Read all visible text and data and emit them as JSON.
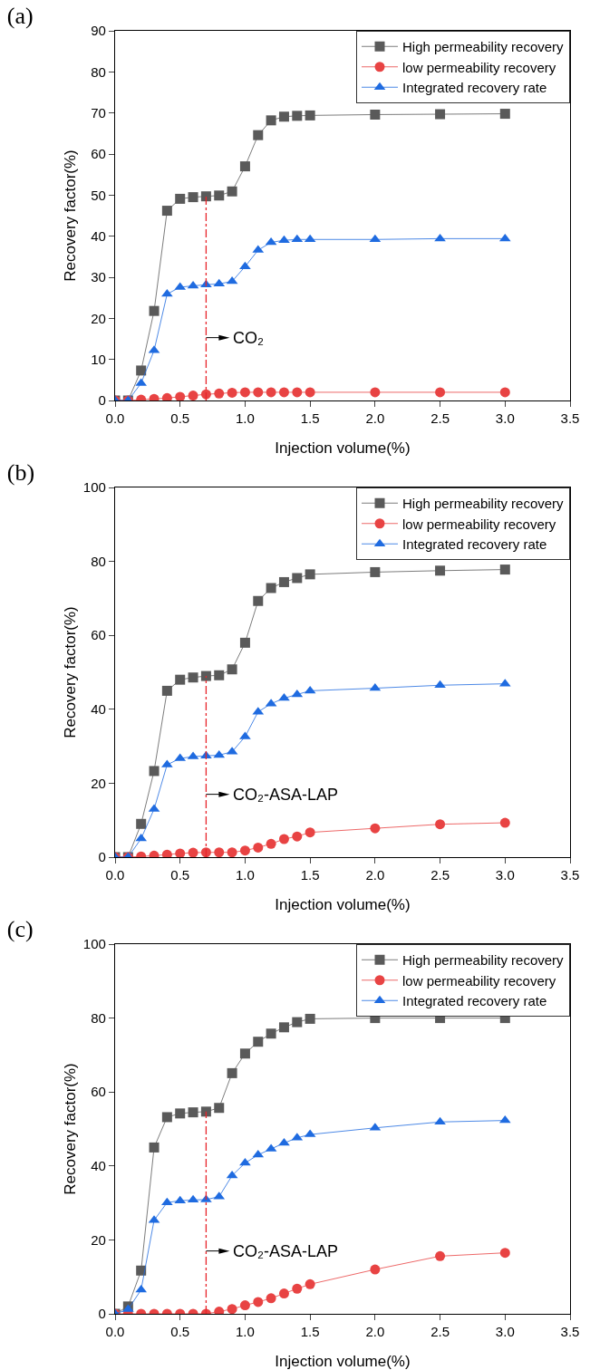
{
  "chart_data": [
    {
      "type": "line",
      "title": "(a)",
      "xlabel": "Injection volume(%)",
      "ylabel": "Recovery factor(%)",
      "x": [
        0,
        0.1,
        0.2,
        0.3,
        0.4,
        0.5,
        0.6,
        0.7,
        0.8,
        0.9,
        1.0,
        1.1,
        1.2,
        1.3,
        1.4,
        1.5,
        2.0,
        2.5,
        3.0
      ],
      "series": [
        {
          "name": "High permeability recovery",
          "color": "#5a5a5a",
          "marker": "square",
          "values": [
            0,
            0,
            7.3,
            21.8,
            46.2,
            49.1,
            49.5,
            49.7,
            49.9,
            50.9,
            57,
            64.6,
            68.2,
            69.1,
            69.3,
            69.4,
            69.6,
            69.7,
            69.8
          ]
        },
        {
          "name": "low permeability recovery",
          "color": "#e84343",
          "marker": "circle",
          "values": [
            0,
            0,
            0.2,
            0.4,
            0.6,
            0.9,
            1.2,
            1.5,
            1.7,
            1.9,
            2,
            2,
            2,
            2,
            2,
            2,
            2,
            2,
            2
          ]
        },
        {
          "name": "Integrated recovery rate",
          "color": "#1f6be0",
          "marker": "triangle",
          "values": [
            0,
            0,
            4.2,
            12.2,
            25.9,
            27.6,
            27.9,
            28.2,
            28.4,
            29,
            32.6,
            36.6,
            38.5,
            39,
            39.2,
            39.2,
            39.2,
            39.4,
            39.4
          ]
        }
      ],
      "xlim": [
        0,
        3.5
      ],
      "xticks": [
        {
          "value": 0,
          "label": "0.0"
        },
        0.5,
        {
          "value": 1,
          "label": "1.0"
        },
        1.5,
        {
          "value": 2,
          "label": "2.0"
        },
        2.5,
        {
          "value": 3,
          "label": "3.0"
        },
        3.5
      ],
      "ylim": [
        0,
        90
      ],
      "yticks": [
        0,
        10,
        20,
        30,
        40,
        50,
        60,
        70,
        80,
        90
      ],
      "ref_lines": [
        {
          "axis": "x",
          "value": 0.7,
          "color": "#e8242a",
          "line_style": "dashdot",
          "label": "CO₂"
        }
      ],
      "grid": false,
      "legend": "top right"
    },
    {
      "type": "line",
      "title": "(b)",
      "xlabel": "Injection volume(%)",
      "ylabel": "Recovery factor(%)",
      "x": [
        0,
        0.1,
        0.2,
        0.3,
        0.4,
        0.5,
        0.6,
        0.7,
        0.8,
        0.9,
        1.0,
        1.1,
        1.2,
        1.3,
        1.4,
        1.5,
        2.0,
        2.5,
        3.0
      ],
      "series": [
        {
          "name": "High permeability recovery",
          "color": "#5a5a5a",
          "marker": "square",
          "values": [
            0,
            0,
            9,
            23.3,
            45,
            48,
            48.6,
            49,
            49.2,
            50.8,
            58,
            69.3,
            72.8,
            74.4,
            75.5,
            76.5,
            77.1,
            77.5,
            77.8
          ]
        },
        {
          "name": "low permeability recovery",
          "color": "#e84343",
          "marker": "circle",
          "values": [
            0,
            0,
            0.2,
            0.4,
            0.7,
            1,
            1.2,
            1.3,
            1.3,
            1.3,
            1.8,
            2.6,
            3.6,
            4.9,
            5.6,
            6.7,
            7.8,
            8.9,
            9.3
          ]
        },
        {
          "name": "Integrated recovery rate",
          "color": "#1f6be0",
          "marker": "triangle",
          "values": [
            0,
            0,
            5,
            13,
            25,
            26.7,
            27.2,
            27.4,
            27.6,
            28.5,
            32.6,
            39.3,
            41.5,
            43,
            44,
            45,
            45.7,
            46.5,
            46.9
          ]
        }
      ],
      "xlim": [
        0,
        3.5
      ],
      "xticks": [
        {
          "value": 0,
          "label": "0.0"
        },
        0.5,
        {
          "value": 1,
          "label": "1.0"
        },
        1.5,
        {
          "value": 2,
          "label": "2.0"
        },
        2.5,
        {
          "value": 3,
          "label": "3.0"
        },
        3.5
      ],
      "ylim": [
        0,
        100
      ],
      "yticks": [
        0,
        20,
        40,
        60,
        80,
        100
      ],
      "ref_lines": [
        {
          "axis": "x",
          "value": 0.7,
          "color": "#e8242a",
          "line_style": "dashdot",
          "label": "CO₂-ASA-LAP"
        }
      ],
      "grid": false,
      "legend": "top right"
    },
    {
      "type": "line",
      "title": "(c)",
      "xlabel": "Injection volume(%)",
      "ylabel": "Recovery factor(%)",
      "x": [
        0,
        0.1,
        0.2,
        0.3,
        0.4,
        0.5,
        0.6,
        0.7,
        0.8,
        0.9,
        1.0,
        1.1,
        1.2,
        1.3,
        1.4,
        1.5,
        2.0,
        2.5,
        3.0
      ],
      "series": [
        {
          "name": "High permeability recovery",
          "color": "#5a5a5a",
          "marker": "square",
          "values": [
            0,
            2,
            11.7,
            45,
            53.2,
            54.2,
            54.5,
            54.7,
            55.7,
            65.1,
            70.4,
            73.6,
            75.8,
            77.5,
            78.9,
            79.8,
            80,
            80,
            80
          ]
        },
        {
          "name": "low permeability recovery",
          "color": "#e84343",
          "marker": "circle",
          "values": [
            0,
            0,
            0,
            0,
            0,
            0,
            0,
            0,
            0.6,
            1.3,
            2.3,
            3.2,
            4.2,
            5.5,
            6.8,
            8,
            12,
            15.6,
            16.5
          ]
        },
        {
          "name": "Integrated recovery rate",
          "color": "#1f6be0",
          "marker": "triangle",
          "values": [
            0,
            1.2,
            6.5,
            25.3,
            30.1,
            30.6,
            30.8,
            30.9,
            31.7,
            37.4,
            40.8,
            43,
            44.6,
            46.2,
            47.6,
            48.5,
            50.3,
            51.9,
            52.3
          ]
        }
      ],
      "xlim": [
        0,
        3.5
      ],
      "xticks": [
        {
          "value": 0,
          "label": "0.0"
        },
        0.5,
        {
          "value": 1,
          "label": "1.0"
        },
        1.5,
        {
          "value": 2,
          "label": "2.0"
        },
        2.5,
        {
          "value": 3,
          "label": "3.0"
        },
        3.5
      ],
      "ylim": [
        0,
        100
      ],
      "yticks": [
        0,
        20,
        40,
        60,
        80,
        100
      ],
      "ref_lines": [
        {
          "axis": "x",
          "value": 0.7,
          "color": "#e8242a",
          "line_style": "dashdot",
          "label": "CO₂-ASA-LAP"
        }
      ],
      "grid": false,
      "legend": "top right"
    }
  ]
}
